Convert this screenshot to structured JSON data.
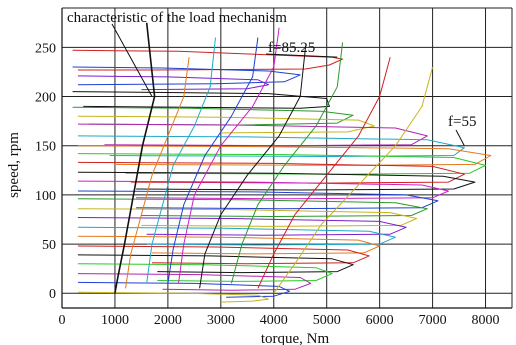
{
  "chart_data": {
    "type": "line",
    "title": "",
    "xlabel": "torque, Nm",
    "ylabel": "speed, rpm",
    "xlim": [
      0,
      8500
    ],
    "ylim": [
      -15,
      290
    ],
    "grid": true,
    "x_ticks": [
      0,
      1000,
      2000,
      3000,
      4000,
      5000,
      6000,
      7000,
      8000
    ],
    "y_ticks": [
      0,
      50,
      100,
      150,
      200,
      250
    ],
    "x_tick_labels": [
      "0",
      "1000",
      "2000",
      "3000",
      "4000",
      "5000",
      "6000",
      "7000",
      "8000"
    ],
    "y_tick_labels": [
      "0",
      "50",
      "100",
      "150",
      "200",
      "250"
    ],
    "annotations": [
      {
        "text": "characteristic of the load mechanism",
        "points_to": [
          1700,
          200
        ]
      },
      {
        "text": "f=85.25",
        "points_to": [
          5200,
          240
        ]
      },
      {
        "text": "f=55",
        "points_to": [
          7600,
          150
        ]
      }
    ],
    "load_characteristic": {
      "name": "characteristic of the load mechanism",
      "color": "#111111",
      "points": [
        [
          1600,
          275
        ],
        [
          1750,
          200
        ],
        [
          1520,
          150
        ],
        [
          1350,
          100
        ],
        [
          1180,
          50
        ],
        [
          1050,
          15
        ],
        [
          1000,
          0
        ]
      ]
    },
    "series": [
      {
        "color": "#d21f1f",
        "points": [
          [
            200,
            247
          ],
          [
            2200,
            246
          ],
          [
            5100,
            240
          ],
          [
            5300,
            238
          ],
          [
            5050,
            232
          ],
          [
            4600,
            228
          ],
          [
            1700,
            227
          ],
          [
            300,
            227
          ]
        ]
      },
      {
        "color": "#1f3fd2",
        "points": [
          [
            200,
            230
          ],
          [
            1900,
            229
          ],
          [
            3900,
            226
          ],
          [
            4500,
            222
          ],
          [
            4200,
            215
          ],
          [
            2900,
            213
          ],
          [
            300,
            212
          ]
        ]
      },
      {
        "color": "#7a1fc9",
        "points": [
          [
            300,
            221
          ],
          [
            2000,
            220
          ],
          [
            3700,
            217
          ],
          [
            3900,
            212
          ],
          [
            3500,
            208
          ],
          [
            1500,
            207
          ]
        ]
      },
      {
        "color": "#111111",
        "points": [
          [
            200,
            205
          ],
          [
            2200,
            204
          ],
          [
            3900,
            203
          ],
          [
            5000,
            198
          ],
          [
            5050,
            190
          ],
          [
            4500,
            188
          ],
          [
            2400,
            189
          ],
          [
            400,
            190
          ]
        ]
      },
      {
        "color": "#2a9a2a",
        "points": [
          [
            200,
            189
          ],
          [
            2400,
            188
          ],
          [
            4900,
            185
          ],
          [
            5500,
            181
          ],
          [
            5200,
            173
          ],
          [
            3400,
            171
          ],
          [
            500,
            172
          ]
        ]
      },
      {
        "color": "#c7b41f",
        "points": [
          [
            300,
            180
          ],
          [
            3000,
            179
          ],
          [
            5600,
            176
          ],
          [
            5900,
            170
          ],
          [
            5400,
            164
          ],
          [
            3000,
            163
          ]
        ]
      },
      {
        "color": "#b025b0",
        "points": [
          [
            300,
            172
          ],
          [
            3200,
            171
          ],
          [
            6300,
            168
          ],
          [
            6900,
            160
          ],
          [
            6600,
            151
          ],
          [
            4200,
            150
          ],
          [
            800,
            151
          ]
        ]
      },
      {
        "color": "#1fa8c9",
        "points": [
          [
            300,
            160
          ],
          [
            3500,
            159
          ],
          [
            6900,
            156
          ],
          [
            7600,
            148
          ],
          [
            7400,
            140
          ],
          [
            5000,
            139
          ],
          [
            900,
            140
          ]
        ]
      },
      {
        "color": "#e27a1f",
        "points": [
          [
            300,
            150
          ],
          [
            4000,
            149
          ],
          [
            7300,
            147
          ],
          [
            8100,
            140
          ],
          [
            7800,
            131
          ],
          [
            5400,
            130
          ],
          [
            1000,
            131
          ]
        ]
      },
      {
        "color": "#2ac92a",
        "points": [
          [
            300,
            142
          ],
          [
            4200,
            141
          ],
          [
            7400,
            138
          ],
          [
            8000,
            130
          ],
          [
            7700,
            122
          ],
          [
            5200,
            121
          ],
          [
            1200,
            122
          ]
        ]
      },
      {
        "color": "#d21f1f",
        "points": [
          [
            300,
            133
          ],
          [
            4000,
            132
          ],
          [
            7000,
            129
          ],
          [
            7600,
            121
          ],
          [
            7300,
            113
          ],
          [
            4900,
            112
          ],
          [
            1300,
            113
          ]
        ]
      },
      {
        "color": "#111111",
        "points": [
          [
            300,
            123
          ],
          [
            4000,
            122
          ],
          [
            7200,
            119
          ],
          [
            7800,
            113
          ],
          [
            7400,
            106
          ],
          [
            4500,
            105
          ],
          [
            1400,
            106
          ]
        ]
      },
      {
        "color": "#c91fc9",
        "points": [
          [
            300,
            114
          ],
          [
            3600,
            113
          ],
          [
            6800,
            110
          ],
          [
            7300,
            104
          ],
          [
            7000,
            97
          ],
          [
            4300,
            96
          ],
          [
            1400,
            97
          ]
        ]
      },
      {
        "color": "#1f3fd2",
        "points": [
          [
            300,
            104
          ],
          [
            3600,
            103
          ],
          [
            6500,
            100
          ],
          [
            7100,
            94
          ],
          [
            6800,
            87
          ],
          [
            4100,
            86
          ],
          [
            1400,
            87
          ]
        ]
      },
      {
        "color": "#2a9a2a",
        "points": [
          [
            300,
            96
          ],
          [
            3400,
            95
          ],
          [
            6300,
            92
          ],
          [
            6900,
            86
          ],
          [
            6600,
            79
          ],
          [
            4000,
            78
          ],
          [
            1500,
            79
          ]
        ]
      },
      {
        "color": "#c7b41f",
        "points": [
          [
            300,
            86
          ],
          [
            3300,
            85
          ],
          [
            6200,
            82
          ],
          [
            6700,
            76
          ],
          [
            6400,
            69
          ],
          [
            3900,
            68
          ],
          [
            1500,
            69
          ]
        ]
      },
      {
        "color": "#7a1fc9",
        "points": [
          [
            300,
            77
          ],
          [
            3200,
            76
          ],
          [
            6000,
            73
          ],
          [
            6500,
            67
          ],
          [
            6200,
            60
          ],
          [
            3800,
            59
          ],
          [
            1600,
            60
          ]
        ]
      },
      {
        "color": "#1fa8c9",
        "points": [
          [
            300,
            67
          ],
          [
            3100,
            66
          ],
          [
            5800,
            63
          ],
          [
            6300,
            57
          ],
          [
            6000,
            50
          ],
          [
            3700,
            49
          ],
          [
            1600,
            50
          ]
        ]
      },
      {
        "color": "#e27a1f",
        "points": [
          [
            300,
            58
          ],
          [
            3000,
            57
          ],
          [
            5600,
            54
          ],
          [
            6000,
            48
          ],
          [
            5700,
            41
          ],
          [
            3600,
            40
          ],
          [
            1700,
            41
          ]
        ]
      },
      {
        "color": "#d21f1f",
        "points": [
          [
            300,
            48
          ],
          [
            2900,
            47
          ],
          [
            5400,
            44
          ],
          [
            5800,
            38
          ],
          [
            5500,
            31
          ],
          [
            3500,
            30
          ],
          [
            1700,
            31
          ]
        ]
      },
      {
        "color": "#111111",
        "points": [
          [
            300,
            39
          ],
          [
            2800,
            38
          ],
          [
            5100,
            35
          ],
          [
            5500,
            29
          ],
          [
            5200,
            22
          ],
          [
            3400,
            21
          ],
          [
            1800,
            22
          ]
        ]
      },
      {
        "color": "#2ac92a",
        "points": [
          [
            300,
            30
          ],
          [
            2700,
            29
          ],
          [
            4800,
            26
          ],
          [
            5100,
            20
          ],
          [
            4800,
            13
          ],
          [
            3300,
            12
          ],
          [
            1800,
            13
          ]
        ]
      },
      {
        "color": "#b025b0",
        "points": [
          [
            300,
            20
          ],
          [
            2600,
            19
          ],
          [
            4500,
            16
          ],
          [
            4700,
            10
          ],
          [
            4400,
            4
          ],
          [
            3200,
            3
          ],
          [
            1900,
            4
          ]
        ]
      },
      {
        "color": "#1f3fd2",
        "points": [
          [
            300,
            11
          ],
          [
            2500,
            10
          ],
          [
            4100,
            7
          ],
          [
            4300,
            2
          ],
          [
            4000,
            -3
          ],
          [
            3100,
            -4
          ]
        ]
      },
      {
        "color": "#c7b41f",
        "points": [
          [
            300,
            1
          ],
          [
            2400,
            0
          ],
          [
            3700,
            -2
          ],
          [
            3900,
            -6
          ],
          [
            3600,
            -8
          ],
          [
            3000,
            -9
          ]
        ]
      },
      {
        "color": "#c91fc9",
        "points": [
          [
            4100,
            270
          ],
          [
            4000,
            230
          ],
          [
            3600,
            190
          ],
          [
            3000,
            150
          ],
          [
            2500,
            100
          ],
          [
            2300,
            50
          ],
          [
            2200,
            10
          ]
        ]
      },
      {
        "color": "#1f3fd2",
        "points": [
          [
            3700,
            260
          ],
          [
            3600,
            220
          ],
          [
            3200,
            180
          ],
          [
            2700,
            140
          ],
          [
            2300,
            90
          ],
          [
            2100,
            45
          ],
          [
            2000,
            10
          ]
        ]
      },
      {
        "color": "#2a9a2a",
        "points": [
          [
            5300,
            255
          ],
          [
            5200,
            210
          ],
          [
            4800,
            170
          ],
          [
            4200,
            130
          ],
          [
            3700,
            90
          ],
          [
            3400,
            50
          ],
          [
            3200,
            10
          ]
        ]
      },
      {
        "color": "#d21f1f",
        "points": [
          [
            6200,
            240
          ],
          [
            6000,
            200
          ],
          [
            5600,
            160
          ],
          [
            5000,
            120
          ],
          [
            4400,
            80
          ],
          [
            4000,
            40
          ],
          [
            3700,
            5
          ]
        ]
      },
      {
        "color": "#111111",
        "points": [
          [
            4600,
            250
          ],
          [
            4500,
            200
          ],
          [
            4100,
            160
          ],
          [
            3500,
            120
          ],
          [
            3000,
            80
          ],
          [
            2700,
            40
          ],
          [
            2600,
            5
          ]
        ]
      },
      {
        "color": "#1fa8c9",
        "points": [
          [
            2900,
            260
          ],
          [
            2800,
            210
          ],
          [
            2500,
            170
          ],
          [
            2100,
            130
          ],
          [
            1900,
            90
          ],
          [
            1700,
            50
          ],
          [
            1600,
            10
          ]
        ]
      },
      {
        "color": "#c7b41f",
        "points": [
          [
            7000,
            230
          ],
          [
            6800,
            190
          ],
          [
            6300,
            150
          ],
          [
            5600,
            110
          ],
          [
            4900,
            70
          ],
          [
            4400,
            30
          ],
          [
            4000,
            0
          ]
        ]
      },
      {
        "color": "#e27a1f",
        "points": [
          [
            2400,
            240
          ],
          [
            2300,
            200
          ],
          [
            2000,
            160
          ],
          [
            1700,
            120
          ],
          [
            1500,
            80
          ],
          [
            1300,
            40
          ],
          [
            1200,
            5
          ]
        ]
      }
    ]
  }
}
